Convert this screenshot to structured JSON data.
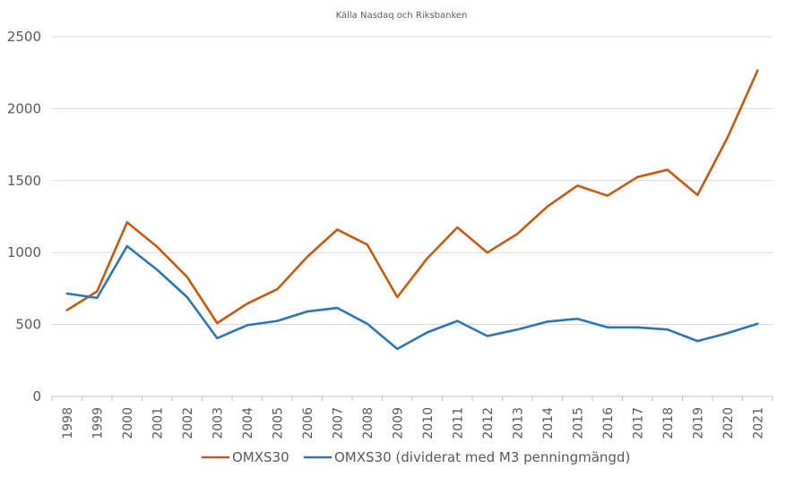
{
  "source": "Källa Nasdaq och Riksbanken",
  "chart_data": {
    "type": "line",
    "title": "",
    "xlabel": "",
    "ylabel": "",
    "ylim": [
      0,
      2500
    ],
    "yticks": [
      0,
      500,
      1000,
      1500,
      2000,
      2500
    ],
    "grid": true,
    "legend_position": "bottom",
    "categories": [
      "1998",
      "1999",
      "2000",
      "2001",
      "2002",
      "2003",
      "2004",
      "2005",
      "2006",
      "2007",
      "2008",
      "2009",
      "2010",
      "2011",
      "2012",
      "2013",
      "2014",
      "2015",
      "2016",
      "2017",
      "2018",
      "2019",
      "2020",
      "2021"
    ],
    "series": [
      {
        "name": "OMXS30",
        "color": "#c55a11",
        "values": [
          600,
          730,
          1210,
          1040,
          830,
          510,
          645,
          745,
          970,
          1160,
          1055,
          690,
          960,
          1175,
          1000,
          1130,
          1320,
          1465,
          1395,
          1525,
          1575,
          1400,
          1800,
          2265
        ]
      },
      {
        "name": "OMXS30  (dividerat med M3 penningmängd)",
        "color": "#2e75b6",
        "values": [
          715,
          685,
          1045,
          880,
          690,
          405,
          495,
          525,
          590,
          615,
          505,
          330,
          445,
          525,
          420,
          465,
          520,
          540,
          480,
          480,
          465,
          385,
          440,
          505
        ]
      }
    ]
  }
}
